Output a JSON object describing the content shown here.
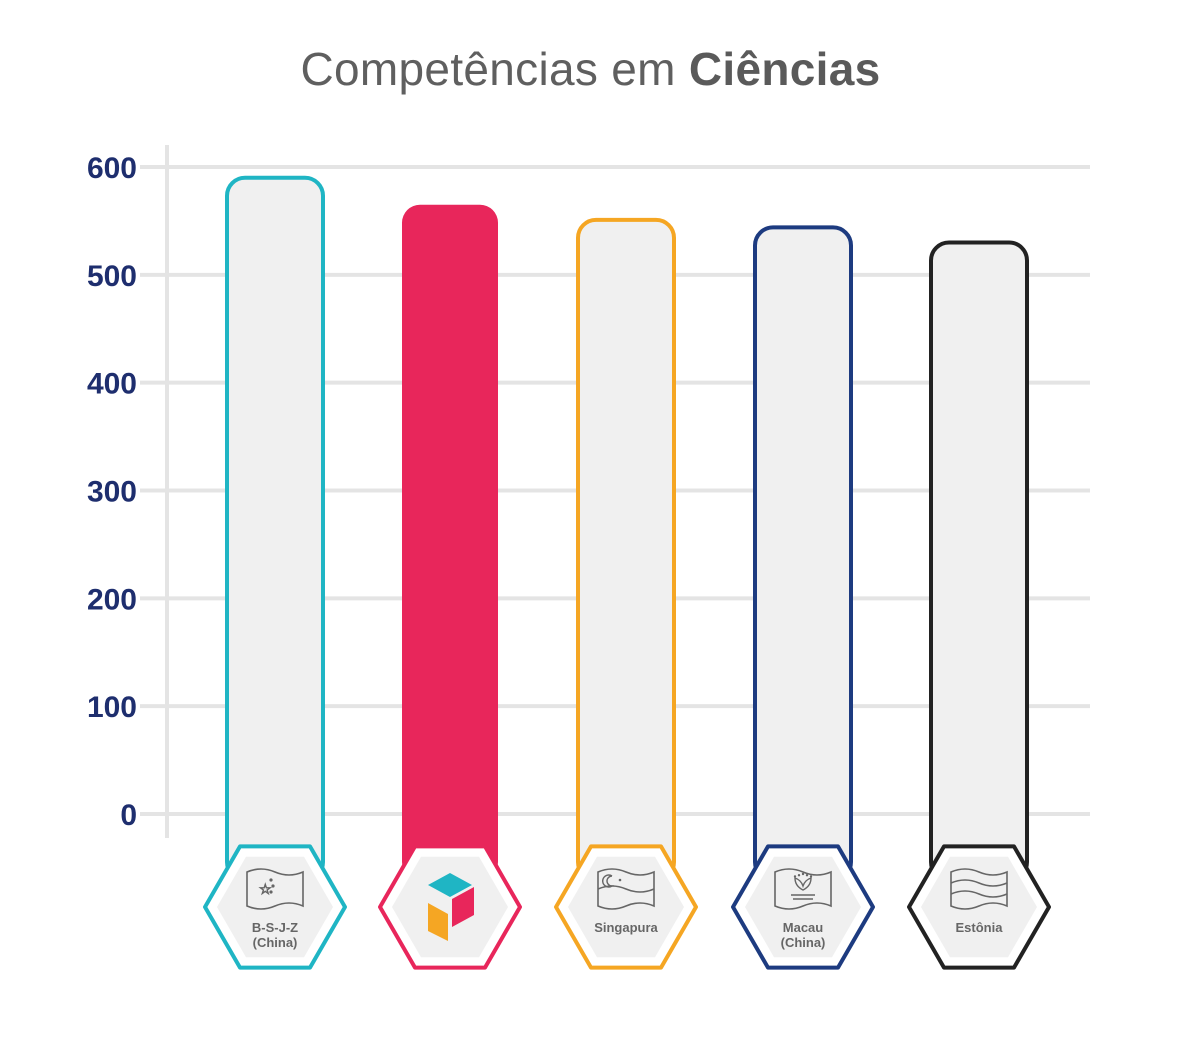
{
  "chart_data": {
    "type": "bar",
    "title_regular": "Competências em",
    "title_bold": "Ciências",
    "ylim": [
      0,
      600
    ],
    "yticks": [
      0,
      100,
      200,
      300,
      400,
      500,
      600
    ],
    "grid": true,
    "categories": [
      {
        "label": [
          "B-S-J-Z",
          "(China)"
        ],
        "value": 590,
        "color": "#1fb5c4",
        "filled": false,
        "icon": "china-flag-icon"
      },
      {
        "label": [],
        "value": 565,
        "color": "#e8265b",
        "filled": true,
        "icon": "brand-cube-logo-icon"
      },
      {
        "label": [
          "Singapura"
        ],
        "value": 551,
        "color": "#f5a623",
        "filled": false,
        "icon": "singapore-flag-icon"
      },
      {
        "label": [
          "Macau",
          "(China)"
        ],
        "value": 544,
        "color": "#1d3b80",
        "filled": false,
        "icon": "macau-flag-icon"
      },
      {
        "label": [
          "Estônia"
        ],
        "value": 530,
        "color": "#222222",
        "filled": false,
        "icon": "estonia-flag-icon"
      }
    ]
  }
}
